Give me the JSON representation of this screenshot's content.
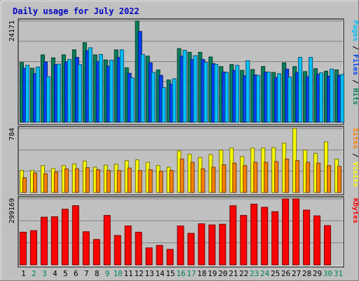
{
  "colors": {
    "background": "#c0c0c0",
    "plot_bg": "#c0c0c0",
    "title": "#0000c0",
    "hits": "#00805c",
    "files": "#0040ff",
    "pages": "#00c0ff",
    "visits": "#ffff00",
    "sites": "#ff8000",
    "kbytes": "#ff0000",
    "weekend_label": "#00805c",
    "weekday_label": "#000000"
  },
  "chart_data": {
    "title": "Daily usage for July 2022",
    "type": "bar",
    "x": {
      "labels": [
        "1",
        "2",
        "3",
        "4",
        "5",
        "6",
        "7",
        "8",
        "9",
        "10",
        "11",
        "12",
        "13",
        "14",
        "15",
        "16",
        "17",
        "18",
        "19",
        "20",
        "21",
        "22",
        "23",
        "24",
        "25",
        "26",
        "27",
        "28",
        "29",
        "30",
        "31"
      ],
      "weekend_days": [
        "2",
        "3",
        "9",
        "10",
        "16",
        "17",
        "23",
        "24",
        "30",
        "31"
      ]
    },
    "panels": [
      {
        "name": "pages-files-hits",
        "y_max_label": "24171",
        "y_max": 24171,
        "ylabel_parts": [
          {
            "text": "Pages",
            "color": "pages"
          },
          {
            "text": " / ",
            "color": "weekday_label"
          },
          {
            "text": "Files",
            "color": "files"
          },
          {
            "text": " / ",
            "color": "weekday_label"
          },
          {
            "text": "Hits",
            "color": "hits"
          }
        ],
        "series": [
          {
            "name": "Hits",
            "color": "hits",
            "values": [
              14300,
              12900,
              16100,
              15400,
              16100,
              17300,
              19000,
              16100,
              14900,
              17300,
              13000,
              24171,
              15800,
              12500,
              10100,
              17600,
              16700,
              16700,
              15600,
              13300,
              13800,
              12400,
              12600,
              13300,
              11900,
              14200,
              13300,
              12100,
              12800,
              12200,
              12500
            ]
          },
          {
            "name": "Files",
            "color": "files",
            "values": [
              12900,
              11600,
              14400,
              13800,
              14400,
              15500,
              17100,
              14500,
              13400,
              15500,
              11700,
              21700,
              14200,
              11200,
              9100,
              15800,
              15000,
              15000,
              14000,
              12000,
              12400,
              11100,
              11300,
              12000,
              10700,
              12700,
              11900,
              10900,
              11500,
              11000,
              11200
            ]
          },
          {
            "name": "Pages",
            "color": "pages",
            "values": [
              13600,
              13200,
              10900,
              13900,
              15000,
              13800,
              17800,
              16200,
              14800,
              17300,
              10600,
              16200,
              11900,
              8300,
              10400,
              17200,
              15900,
              14300,
              13800,
              11900,
              13600,
              14700,
              11200,
              12000,
              11600,
              10800,
              15500,
              15500,
              11800,
              12700,
              11400
            ]
          }
        ]
      },
      {
        "name": "sites-visits",
        "y_max_label": "784",
        "y_max": 784,
        "ylabel_parts": [
          {
            "text": "Sites",
            "color": "sites"
          },
          {
            "text": " / ",
            "color": "weekday_label"
          },
          {
            "text": "Visits",
            "color": "visits"
          }
        ],
        "series": [
          {
            "name": "Visits",
            "color": "visits",
            "values": [
              270,
              270,
              330,
              295,
              330,
              350,
              385,
              310,
              335,
              345,
              390,
              400,
              370,
              330,
              310,
              510,
              470,
              430,
              465,
              520,
              545,
              440,
              545,
              545,
              550,
              605,
              784,
              520,
              480,
              620,
              410
            ]
          },
          {
            "name": "Sites",
            "color": "sites",
            "values": [
              180,
              240,
              230,
              250,
              290,
              290,
              305,
              280,
              270,
              270,
              300,
              270,
              280,
              260,
              270,
              410,
              370,
              290,
              310,
              340,
              360,
              330,
              370,
              370,
              380,
              410,
              390,
              370,
              360,
              330,
              320
            ]
          }
        ]
      },
      {
        "name": "kbytes",
        "y_max_label": "299169",
        "y_max": 299169,
        "ylabel_parts": [
          {
            "text": "KBytes",
            "color": "kbytes"
          }
        ],
        "series": [
          {
            "name": "KBytes",
            "color": "kbytes",
            "values": [
              148000,
              155000,
              216000,
              218000,
              252000,
              268000,
              150000,
              115000,
              224000,
              133000,
              176000,
              148000,
              77000,
              88000,
              70000,
              176000,
              143000,
              186000,
              181000,
              184000,
              268000,
              224000,
              275000,
              261000,
              241000,
              299169,
              299169,
              248000,
              222000,
              178000,
              0
            ]
          }
        ]
      }
    ]
  }
}
